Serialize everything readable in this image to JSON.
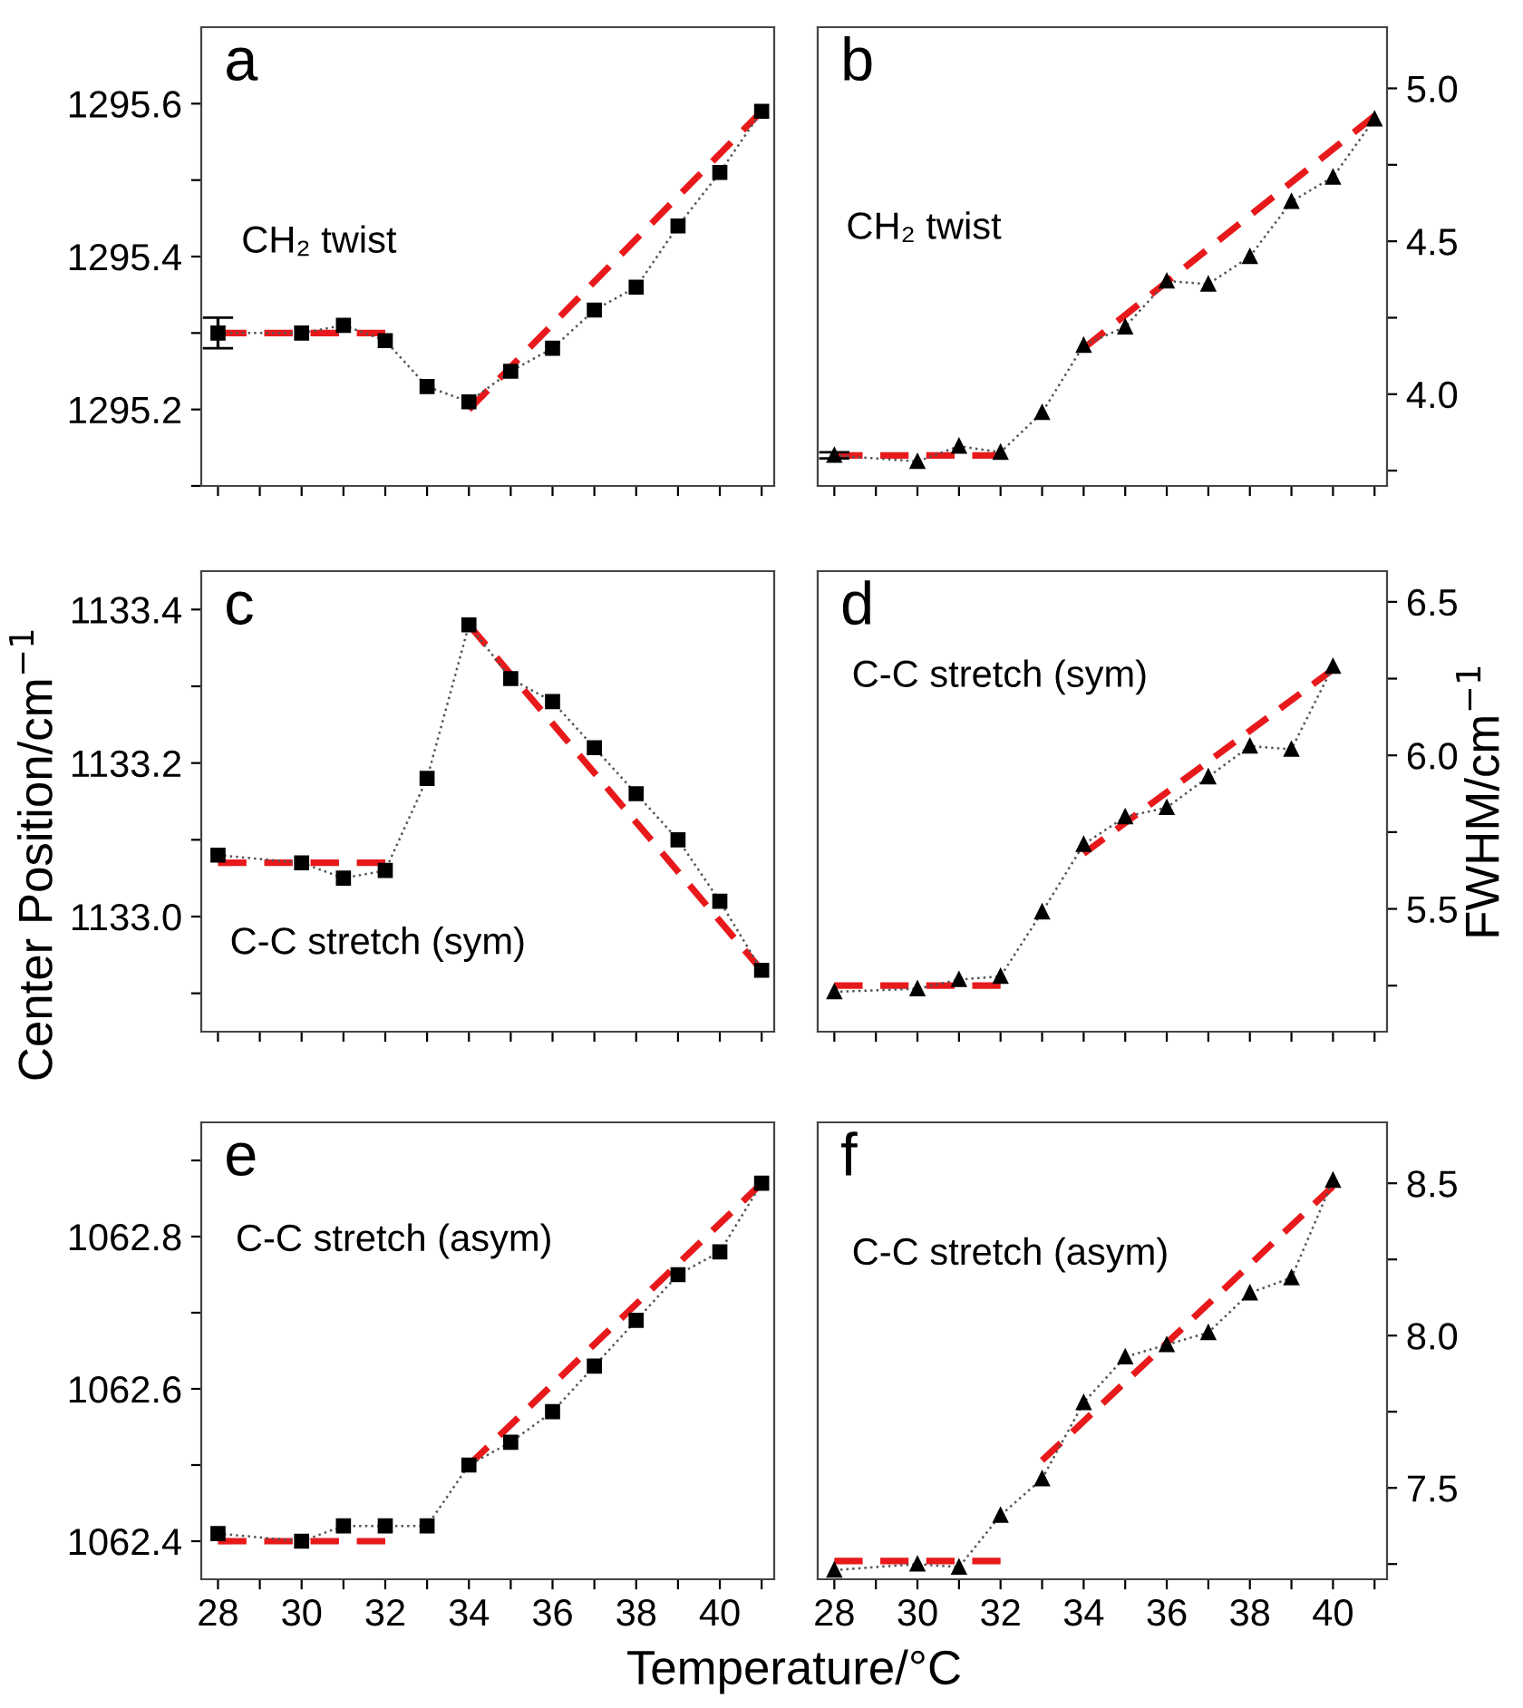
{
  "chart_data": [
    {
      "type": "line",
      "title": "a",
      "annotations": [
        "CH₂ twist"
      ],
      "marker": "square",
      "line_style": "dotted",
      "grid": false,
      "tick_labels": "y",
      "xlim": [
        27.6,
        41.3
      ],
      "xticks": [
        28,
        {
          "value": 29,
          "label": null
        },
        30,
        {
          "value": 31,
          "label": null
        },
        32,
        {
          "value": 33,
          "label": null
        },
        34,
        {
          "value": 35,
          "label": null
        },
        36,
        {
          "value": 37,
          "label": null
        },
        38,
        {
          "value": 39,
          "label": null
        },
        40,
        {
          "value": 41,
          "label": null
        }
      ],
      "ylim": [
        1295.1,
        1295.7
      ],
      "yticks": [
        {
          "value": 1295.1,
          "label": null
        },
        1295.2,
        {
          "value": 1295.3,
          "label": null
        },
        1295.4,
        {
          "value": 1295.5,
          "label": null
        },
        1295.6
      ],
      "series": [
        {
          "color": "#000000",
          "x": [
            28,
            30,
            31,
            32,
            33,
            34,
            35,
            36,
            37,
            38,
            39,
            40,
            41
          ],
          "values": [
            1295.3,
            1295.3,
            1295.31,
            1295.29,
            1295.23,
            1295.21,
            1295.25,
            1295.28,
            1295.33,
            1295.36,
            1295.44,
            1295.51,
            1295.59
          ],
          "errors": [
            0.02,
            null,
            null,
            null,
            null,
            null,
            null,
            null,
            null,
            null,
            null,
            null,
            null
          ]
        },
        {
          "color": "#e8191b",
          "marker": "none",
          "line_style": "dashed",
          "x": [
            28,
            32
          ],
          "values": [
            1295.3,
            1295.3
          ]
        },
        {
          "color": "#e8191b",
          "marker": "none",
          "line_style": "dashed",
          "x": [
            34,
            41
          ],
          "values": [
            1295.2,
            1295.59
          ]
        }
      ]
    },
    {
      "type": "line",
      "title": "b",
      "annotations": [
        "CH₂ twist"
      ],
      "marker": "triangle",
      "line_style": "dotted",
      "grid": false,
      "tick_labels": "y",
      "xlim": [
        27.6,
        41.3
      ],
      "xticks": [
        28,
        {
          "value": 29,
          "label": null
        },
        30,
        {
          "value": 31,
          "label": null
        },
        32,
        {
          "value": 33,
          "label": null
        },
        34,
        {
          "value": 35,
          "label": null
        },
        36,
        {
          "value": 37,
          "label": null
        },
        38,
        {
          "value": 39,
          "label": null
        },
        40,
        {
          "value": 41,
          "label": null
        }
      ],
      "ylim": [
        3.7,
        5.2
      ],
      "yticks": [
        {
          "value": 3.75,
          "label": null
        },
        {
          "value": 4.0,
          "label": "4.0"
        },
        {
          "value": 4.25,
          "label": null
        },
        4.5,
        {
          "value": 4.75,
          "label": null
        },
        {
          "value": 5.0,
          "label": "5.0"
        }
      ],
      "series": [
        {
          "color": "#000000",
          "x": [
            28,
            30,
            31,
            32,
            33,
            34,
            35,
            36,
            37,
            38,
            39,
            40,
            41
          ],
          "values": [
            3.8,
            3.78,
            3.83,
            3.81,
            3.94,
            4.16,
            4.22,
            4.37,
            4.36,
            4.45,
            4.63,
            4.71,
            4.9
          ],
          "errors": [
            0.01,
            null,
            null,
            null,
            null,
            null,
            null,
            null,
            null,
            null,
            null,
            null,
            null
          ]
        },
        {
          "color": "#e8191b",
          "marker": "none",
          "line_style": "dashed",
          "x": [
            28,
            32
          ],
          "values": [
            3.8,
            3.8
          ]
        },
        {
          "color": "#e8191b",
          "marker": "none",
          "line_style": "dashed",
          "x": [
            34,
            41
          ],
          "values": [
            4.15,
            4.91
          ]
        }
      ]
    },
    {
      "type": "line",
      "title": "c",
      "ylabel": "Center Position/cm$^{−1}$",
      "annotations": [
        "C-C stretch (sym)"
      ],
      "marker": "square",
      "line_style": "dotted",
      "grid": false,
      "tick_labels": "y",
      "xlim": [
        27.6,
        41.3
      ],
      "xticks": [
        28,
        {
          "value": 29,
          "label": null
        },
        30,
        {
          "value": 31,
          "label": null
        },
        32,
        {
          "value": 33,
          "label": null
        },
        34,
        {
          "value": 35,
          "label": null
        },
        36,
        {
          "value": 37,
          "label": null
        },
        38,
        {
          "value": 39,
          "label": null
        },
        40,
        {
          "value": 41,
          "label": null
        }
      ],
      "ylim": [
        1132.85,
        1133.45
      ],
      "yticks": [
        {
          "value": 1132.9,
          "label": null
        },
        {
          "value": 1133.0,
          "label": "1133.0"
        },
        {
          "value": 1133.1,
          "label": null
        },
        1133.2,
        {
          "value": 1133.3,
          "label": null
        },
        1133.4
      ],
      "series": [
        {
          "color": "#000000",
          "x": [
            28,
            30,
            31,
            32,
            33,
            34,
            35,
            36,
            37,
            38,
            39,
            40,
            41
          ],
          "values": [
            1133.08,
            1133.07,
            1133.05,
            1133.06,
            1133.18,
            1133.38,
            1133.31,
            1133.28,
            1133.22,
            1133.16,
            1133.1,
            1133.02,
            1132.93
          ]
        },
        {
          "color": "#e8191b",
          "marker": "none",
          "line_style": "dashed",
          "x": [
            28,
            32
          ],
          "values": [
            1133.07,
            1133.07
          ]
        },
        {
          "color": "#e8191b",
          "marker": "none",
          "line_style": "dashed",
          "x": [
            34,
            41
          ],
          "values": [
            1133.38,
            1132.93
          ]
        }
      ]
    },
    {
      "type": "line",
      "title": "d",
      "ylabel": "FWHM/cm$^{−1}$",
      "annotations": [
        "C-C stretch (sym)"
      ],
      "marker": "triangle",
      "line_style": "dotted",
      "grid": false,
      "tick_labels": "y",
      "xlim": [
        27.6,
        41.3
      ],
      "xticks": [
        28,
        {
          "value": 29,
          "label": null
        },
        30,
        {
          "value": 31,
          "label": null
        },
        32,
        {
          "value": 33,
          "label": null
        },
        34,
        {
          "value": 35,
          "label": null
        },
        36,
        {
          "value": 37,
          "label": null
        },
        38,
        {
          "value": 39,
          "label": null
        },
        40,
        {
          "value": 41,
          "label": null
        }
      ],
      "ylim": [
        5.1,
        6.6
      ],
      "yticks": [
        {
          "value": 5.25,
          "label": null
        },
        5.5,
        {
          "value": 5.75,
          "label": null
        },
        {
          "value": 6.0,
          "label": "6.0"
        },
        {
          "value": 6.25,
          "label": null
        },
        6.5
      ],
      "series": [
        {
          "color": "#000000",
          "x": [
            28,
            30,
            31,
            32,
            33,
            34,
            35,
            36,
            37,
            38,
            39,
            40
          ],
          "values": [
            5.23,
            5.24,
            5.27,
            5.28,
            5.49,
            5.71,
            5.8,
            5.83,
            5.93,
            6.03,
            6.02,
            6.29
          ]
        },
        {
          "color": "#e8191b",
          "marker": "none",
          "line_style": "dashed",
          "x": [
            28,
            32
          ],
          "values": [
            5.25,
            5.25
          ]
        },
        {
          "color": "#e8191b",
          "marker": "none",
          "line_style": "dashed",
          "x": [
            34,
            40
          ],
          "values": [
            5.68,
            6.28
          ]
        }
      ]
    },
    {
      "type": "line",
      "title": "e",
      "xlabel": "Temperature/°C",
      "annotations": [
        "C-C stretch (asym)"
      ],
      "marker": "square",
      "line_style": "dotted",
      "grid": false,
      "xlim": [
        27.6,
        41.3
      ],
      "xticks": [
        28,
        {
          "value": 29,
          "label": null
        },
        30,
        {
          "value": 31,
          "label": null
        },
        32,
        {
          "value": 33,
          "label": null
        },
        34,
        {
          "value": 35,
          "label": null
        },
        36,
        {
          "value": 37,
          "label": null
        },
        38,
        {
          "value": 39,
          "label": null
        },
        40,
        {
          "value": 41,
          "label": null
        }
      ],
      "ylim": [
        1062.35,
        1062.95
      ],
      "yticks": [
        1062.4,
        {
          "value": 1062.5,
          "label": null
        },
        1062.6,
        {
          "value": 1062.7,
          "label": null
        },
        1062.8,
        {
          "value": 1062.9,
          "label": null
        }
      ],
      "series": [
        {
          "color": "#000000",
          "x": [
            28,
            30,
            31,
            32,
            33,
            34,
            35,
            36,
            37,
            38,
            39,
            40,
            41
          ],
          "values": [
            1062.41,
            1062.4,
            1062.42,
            1062.42,
            1062.42,
            1062.5,
            1062.53,
            1062.57,
            1062.63,
            1062.69,
            1062.75,
            1062.78,
            1062.87
          ]
        },
        {
          "color": "#e8191b",
          "marker": "none",
          "line_style": "dashed",
          "x": [
            28,
            32
          ],
          "values": [
            1062.4,
            1062.4
          ]
        },
        {
          "color": "#e8191b",
          "marker": "none",
          "line_style": "dashed",
          "x": [
            34,
            41
          ],
          "values": [
            1062.5,
            1062.87
          ]
        }
      ]
    },
    {
      "type": "line",
      "title": "f",
      "annotations": [
        "C-C stretch (asym)"
      ],
      "marker": "triangle",
      "line_style": "dotted",
      "grid": false,
      "xlim": [
        27.6,
        41.3
      ],
      "xticks": [
        28,
        {
          "value": 29,
          "label": null
        },
        30,
        {
          "value": 31,
          "label": null
        },
        32,
        {
          "value": 33,
          "label": null
        },
        34,
        {
          "value": 35,
          "label": null
        },
        36,
        {
          "value": 37,
          "label": null
        },
        38,
        {
          "value": 39,
          "label": null
        },
        40,
        {
          "value": 41,
          "label": null
        }
      ],
      "ylim": [
        7.2,
        8.7
      ],
      "yticks": [
        {
          "value": 7.25,
          "label": null
        },
        7.5,
        {
          "value": 7.75,
          "label": null
        },
        {
          "value": 8.0,
          "label": "8.0"
        },
        {
          "value": 8.25,
          "label": null
        },
        8.5
      ],
      "series": [
        {
          "color": "#000000",
          "x": [
            28,
            30,
            31,
            32,
            33,
            34,
            35,
            36,
            37,
            38,
            39,
            40
          ],
          "values": [
            7.23,
            7.25,
            7.24,
            7.41,
            7.53,
            7.78,
            7.93,
            7.97,
            8.01,
            8.14,
            8.19,
            8.51
          ]
        },
        {
          "color": "#e8191b",
          "marker": "none",
          "line_style": "dashed",
          "x": [
            28,
            32
          ],
          "values": [
            7.26,
            7.26
          ]
        },
        {
          "color": "#e8191b",
          "marker": "none",
          "line_style": "dashed",
          "x": [
            33,
            40
          ],
          "values": [
            7.59,
            8.49
          ]
        }
      ]
    }
  ]
}
